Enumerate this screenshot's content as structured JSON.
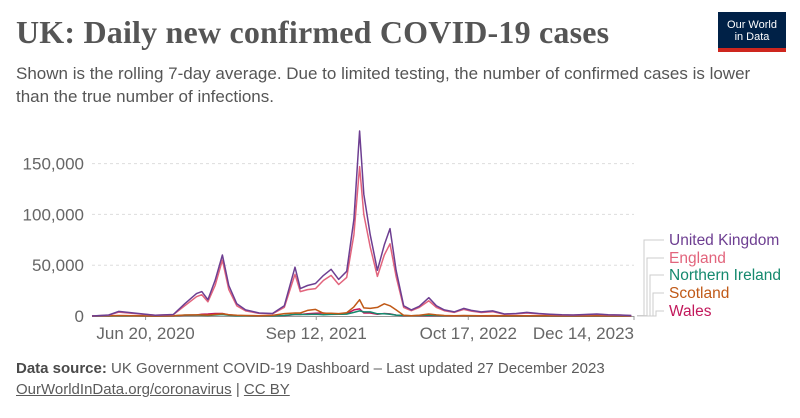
{
  "title": "UK: Daily new confirmed COVID-19 cases",
  "subtitle": "Shown is the rolling 7-day average. Due to limited testing, the number of confirmed cases is lower than the true number of infections.",
  "logo": {
    "line1": "Our World",
    "line2": "in Data"
  },
  "footer": {
    "source_label": "Data source:",
    "source_text": "UK Government COVID-19 Dashboard – Last updated 27 December 2023",
    "link_text": "OurWorldInData.org/coronavirus",
    "separator": "|",
    "license_text": "CC BY"
  },
  "colors": {
    "United Kingdom": "#6d3e91",
    "England": "#e2647c",
    "Northern Ireland": "#15896e",
    "Scotland": "#c05917",
    "Wales": "#c2185b",
    "grid": "#dddddd",
    "axis": "#666666"
  },
  "chart_data": {
    "type": "line",
    "title": "UK: Daily new confirmed COVID-19 cases",
    "xlabel": "",
    "ylabel": "",
    "ylim": [
      0,
      185000
    ],
    "x_ticks": [
      "Jun 20, 2020",
      "Sep 12, 2021",
      "Oct 17, 2022",
      "Dec 14, 2023"
    ],
    "y_ticks": [
      0,
      50000,
      100000,
      150000
    ],
    "y_tick_labels": [
      "0",
      "50,000",
      "100,000",
      "150,000"
    ],
    "grid": "horizontal dashed",
    "legend_position": "right, labels at line ends",
    "x": [
      "2020-01-31",
      "2020-03-15",
      "2020-04-10",
      "2020-05-20",
      "2020-07-15",
      "2020-09-01",
      "2020-10-01",
      "2020-11-01",
      "2020-11-15",
      "2020-12-01",
      "2020-12-20",
      "2021-01-08",
      "2021-01-25",
      "2021-02-15",
      "2021-03-10",
      "2021-04-15",
      "2021-05-20",
      "2021-06-20",
      "2021-07-18",
      "2021-08-01",
      "2021-08-20",
      "2021-09-10",
      "2021-10-01",
      "2021-10-21",
      "2021-11-10",
      "2021-12-01",
      "2021-12-20",
      "2022-01-04",
      "2022-01-15",
      "2022-02-01",
      "2022-02-20",
      "2022-03-10",
      "2022-03-25",
      "2022-04-10",
      "2022-04-30",
      "2022-05-20",
      "2022-06-10",
      "2022-07-05",
      "2022-07-25",
      "2022-08-15",
      "2022-09-10",
      "2022-10-05",
      "2022-10-25",
      "2022-11-20",
      "2022-12-20",
      "2023-01-20",
      "2023-02-20",
      "2023-03-20",
      "2023-04-20",
      "2023-05-20",
      "2023-06-20",
      "2023-07-20",
      "2023-08-20",
      "2023-09-20",
      "2023-10-20",
      "2023-11-20",
      "2023-12-20"
    ],
    "series": [
      {
        "name": "United Kingdom",
        "values": [
          0,
          1000,
          4500,
          3000,
          800,
          1500,
          12000,
          22000,
          24000,
          16000,
          35000,
          60000,
          30000,
          12000,
          6000,
          3000,
          2500,
          10000,
          48000,
          27000,
          30000,
          32000,
          40000,
          46000,
          36000,
          44000,
          95000,
          182000,
          120000,
          80000,
          45000,
          70000,
          86000,
          45000,
          10000,
          6000,
          9500,
          18000,
          10000,
          6000,
          4000,
          7500,
          5500,
          4000,
          5000,
          2000,
          2500,
          3500,
          2500,
          1800,
          1200,
          1000,
          1500,
          2000,
          1200,
          1000,
          500
        ]
      },
      {
        "name": "England",
        "values": [
          0,
          800,
          3800,
          2500,
          700,
          1300,
          10000,
          19000,
          21000,
          14000,
          30000,
          55000,
          26000,
          10000,
          5000,
          2600,
          2200,
          8500,
          41000,
          24000,
          26000,
          27000,
          35000,
          40000,
          31000,
          38000,
          80000,
          147000,
          100000,
          68000,
          39000,
          60000,
          71000,
          39000,
          8500,
          5200,
          8500,
          15000,
          8500,
          5200,
          3500,
          6500,
          4800,
          3400,
          4200,
          1700,
          2100,
          3000,
          2100,
          1500,
          1000,
          850,
          1300,
          1700,
          1000,
          850,
          420
        ]
      },
      {
        "name": "Northern Ireland",
        "values": [
          0,
          0,
          150,
          100,
          20,
          80,
          900,
          900,
          800,
          500,
          1000,
          1500,
          800,
          250,
          150,
          100,
          80,
          500,
          1600,
          1500,
          1500,
          1700,
          1200,
          1600,
          1800,
          1900,
          3500,
          5000,
          4000,
          4000,
          2200,
          2300,
          1800,
          900,
          500,
          300,
          500,
          800,
          500,
          250,
          150,
          200,
          120,
          80,
          70,
          40,
          40,
          40,
          30,
          30,
          20,
          20,
          25,
          20,
          15,
          12,
          5
        ]
      },
      {
        "name": "Scotland",
        "values": [
          0,
          150,
          350,
          250,
          20,
          150,
          1000,
          1100,
          1100,
          900,
          1500,
          2200,
          1200,
          700,
          500,
          300,
          600,
          2400,
          3000,
          3000,
          5500,
          6500,
          2700,
          2700,
          2400,
          3200,
          9000,
          16000,
          8000,
          7500,
          8500,
          12000,
          10000,
          6000,
          700,
          300,
          700,
          2000,
          1100,
          500,
          300,
          500,
          400,
          300,
          400,
          200,
          200,
          250,
          200,
          150,
          100,
          80,
          100,
          150,
          80,
          60,
          30
        ]
      },
      {
        "name": "Wales",
        "values": [
          0,
          60,
          400,
          200,
          20,
          80,
          700,
          1000,
          1800,
          2000,
          2500,
          2500,
          1200,
          400,
          150,
          60,
          60,
          300,
          1500,
          1500,
          2200,
          2800,
          3000,
          2300,
          1800,
          2300,
          6000,
          7000,
          3000,
          3000,
          1700,
          2500,
          2100,
          900,
          200,
          150,
          200,
          400,
          200,
          100,
          60,
          80,
          60,
          40,
          40,
          20,
          20,
          30,
          20,
          15,
          10,
          10,
          10,
          15,
          10,
          8,
          4
        ]
      }
    ]
  }
}
